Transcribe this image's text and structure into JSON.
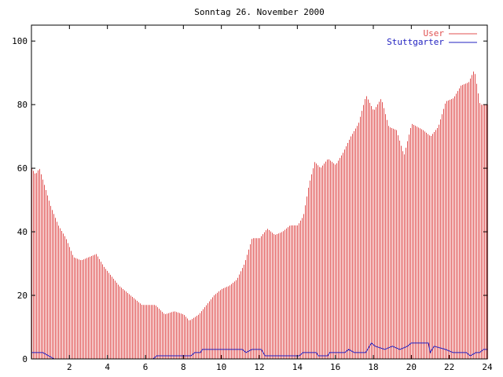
{
  "chart_data": {
    "type": "bar",
    "title": "Sonntag 26. November 2000",
    "xlabel": "",
    "ylabel": "",
    "xlim": [
      0,
      24
    ],
    "ylim": [
      0,
      105
    ],
    "x_ticks": [
      2,
      4,
      6,
      8,
      10,
      12,
      14,
      16,
      18,
      20,
      22,
      24
    ],
    "y_ticks": [
      0,
      20,
      40,
      60,
      80,
      100
    ],
    "legend_position": "top-right",
    "grid": false,
    "series": [
      {
        "name": "User",
        "style": "bars",
        "color": "#e05050",
        "anchors": [
          [
            0.0,
            60
          ],
          [
            0.2,
            58
          ],
          [
            0.4,
            60
          ],
          [
            0.7,
            54
          ],
          [
            1.0,
            48
          ],
          [
            1.4,
            42
          ],
          [
            1.8,
            38
          ],
          [
            2.2,
            32
          ],
          [
            2.6,
            31
          ],
          [
            3.0,
            32
          ],
          [
            3.4,
            33
          ],
          [
            3.8,
            29
          ],
          [
            4.2,
            26
          ],
          [
            4.6,
            23
          ],
          [
            5.0,
            21
          ],
          [
            5.4,
            19
          ],
          [
            5.8,
            17
          ],
          [
            6.2,
            17
          ],
          [
            6.5,
            17
          ],
          [
            7.0,
            14
          ],
          [
            7.5,
            15
          ],
          [
            8.0,
            14
          ],
          [
            8.3,
            12
          ],
          [
            8.8,
            14
          ],
          [
            9.2,
            17
          ],
          [
            9.6,
            20
          ],
          [
            10.0,
            22
          ],
          [
            10.4,
            23
          ],
          [
            10.8,
            25
          ],
          [
            11.2,
            30
          ],
          [
            11.6,
            38
          ],
          [
            12.0,
            38
          ],
          [
            12.4,
            41
          ],
          [
            12.8,
            39
          ],
          [
            13.2,
            40
          ],
          [
            13.6,
            42
          ],
          [
            14.0,
            42
          ],
          [
            14.3,
            45
          ],
          [
            14.6,
            55
          ],
          [
            14.9,
            62
          ],
          [
            15.2,
            60
          ],
          [
            15.6,
            63
          ],
          [
            16.0,
            61
          ],
          [
            16.4,
            65
          ],
          [
            16.8,
            70
          ],
          [
            17.2,
            74
          ],
          [
            17.6,
            83
          ],
          [
            18.0,
            78
          ],
          [
            18.4,
            82
          ],
          [
            18.8,
            73
          ],
          [
            19.2,
            72
          ],
          [
            19.6,
            64
          ],
          [
            20.0,
            74
          ],
          [
            20.3,
            73
          ],
          [
            20.6,
            72
          ],
          [
            21.0,
            70
          ],
          [
            21.4,
            73
          ],
          [
            21.8,
            81
          ],
          [
            22.2,
            82
          ],
          [
            22.6,
            86
          ],
          [
            23.0,
            87
          ],
          [
            23.3,
            91
          ],
          [
            23.6,
            80
          ],
          [
            24.0,
            80
          ]
        ]
      },
      {
        "name": "Stuttgarter",
        "style": "line",
        "color": "#2020c0",
        "anchors": [
          [
            0.0,
            2
          ],
          [
            0.6,
            2
          ],
          [
            1.2,
            0
          ],
          [
            6.4,
            0
          ],
          [
            6.6,
            1
          ],
          [
            8.4,
            1
          ],
          [
            8.6,
            2
          ],
          [
            8.9,
            2
          ],
          [
            9.0,
            3
          ],
          [
            11.1,
            3
          ],
          [
            11.3,
            2
          ],
          [
            11.6,
            3
          ],
          [
            12.1,
            3
          ],
          [
            12.3,
            1
          ],
          [
            14.1,
            1
          ],
          [
            14.3,
            2
          ],
          [
            15.0,
            2
          ],
          [
            15.1,
            1
          ],
          [
            15.6,
            1
          ],
          [
            15.7,
            2
          ],
          [
            16.5,
            2
          ],
          [
            16.7,
            3
          ],
          [
            17.0,
            2
          ],
          [
            17.6,
            2
          ],
          [
            17.9,
            5
          ],
          [
            18.1,
            4
          ],
          [
            18.6,
            3
          ],
          [
            19.0,
            4
          ],
          [
            19.4,
            3
          ],
          [
            19.8,
            4
          ],
          [
            20.0,
            5
          ],
          [
            20.9,
            5
          ],
          [
            21.0,
            2
          ],
          [
            21.2,
            4
          ],
          [
            21.8,
            3
          ],
          [
            22.2,
            2
          ],
          [
            22.9,
            2
          ],
          [
            23.1,
            1
          ],
          [
            23.4,
            2
          ],
          [
            23.6,
            2
          ],
          [
            23.8,
            3
          ],
          [
            24.0,
            3
          ]
        ]
      }
    ]
  }
}
